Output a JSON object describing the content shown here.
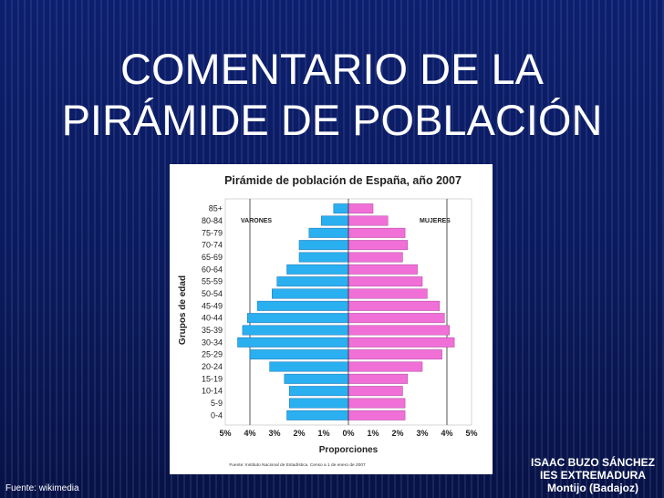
{
  "slide": {
    "title_line1": "COMENTARIO DE LA",
    "title_line2": "PIRÁMIDE DE POBLACIÓN",
    "source": "Fuente: wikimedia",
    "author_line1": "ISAAC BUZO SÁNCHEZ",
    "author_line2": "IES EXTREMADURA",
    "author_line3": "Montijo (Badajoz)"
  },
  "colors": {
    "background": "#0a1a5c",
    "male": "#2ab0f0",
    "female": "#f070d8",
    "text": "#ffffff"
  },
  "chart_data": {
    "type": "bar",
    "orientation": "population-pyramid",
    "title": "Pirámide de población de España, año 2007",
    "xlabel": "Proporciones",
    "ylabel": "Grupos de edad",
    "xlim": [
      -5,
      5
    ],
    "x_tick_labels": [
      "5%",
      "4%",
      "3%",
      "2%",
      "1%",
      "0%",
      "1%",
      "2%",
      "3%",
      "4%",
      "5%"
    ],
    "vertical_reference_lines_at": [
      -4,
      4
    ],
    "categories": [
      "0-4",
      "5-9",
      "10-14",
      "15-19",
      "20-24",
      "25-29",
      "30-34",
      "35-39",
      "40-44",
      "45-49",
      "50-54",
      "55-59",
      "60-64",
      "65-69",
      "70-74",
      "75-79",
      "80-84",
      "85+"
    ],
    "series": [
      {
        "name": "VARONES",
        "values": [
          2.5,
          2.4,
          2.4,
          2.6,
          3.2,
          4.0,
          4.5,
          4.3,
          4.1,
          3.7,
          3.1,
          2.9,
          2.5,
          2.0,
          2.0,
          1.6,
          1.1,
          0.6
        ]
      },
      {
        "name": "MUJERES",
        "values": [
          2.3,
          2.3,
          2.2,
          2.4,
          3.0,
          3.8,
          4.3,
          4.1,
          3.9,
          3.7,
          3.2,
          3.0,
          2.8,
          2.2,
          2.4,
          2.3,
          1.6,
          1.0
        ]
      }
    ],
    "footnote": "Fuente: Instituto Nacional de Estadística. Censo a 1 de enero de 2007"
  }
}
